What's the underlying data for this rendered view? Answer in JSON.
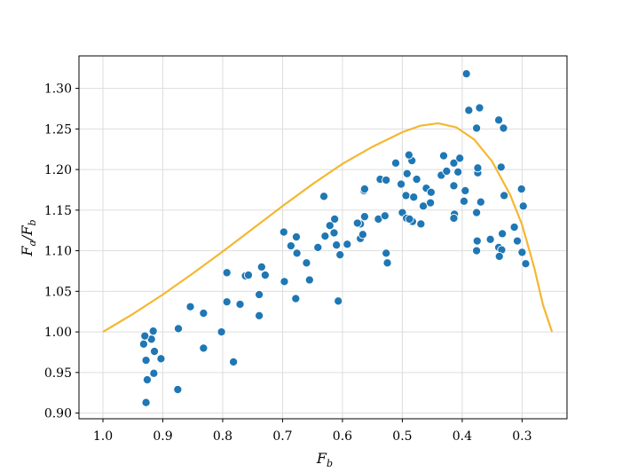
{
  "chart_data": {
    "type": "scatter",
    "title": "",
    "xlabel": "F_b",
    "ylabel": "F_a/F_b",
    "x_inverted": true,
    "xlim": [
      1.04,
      0.225
    ],
    "ylim": [
      0.893,
      1.34
    ],
    "grid": true,
    "x_ticks": [
      1.0,
      0.9,
      0.8,
      0.7,
      0.6,
      0.5,
      0.4,
      0.3
    ],
    "x_tick_labels": [
      "1.0",
      "0.9",
      "0.8",
      "0.7",
      "0.6",
      "0.5",
      "0.4",
      "0.3"
    ],
    "y_ticks": [
      0.9,
      0.95,
      1.0,
      1.05,
      1.1,
      1.15,
      1.2,
      1.25,
      1.3
    ],
    "y_tick_labels": [
      "0.90",
      "0.95",
      "1.00",
      "1.05",
      "1.10",
      "1.15",
      "1.20",
      "1.25",
      "1.30"
    ],
    "colors": {
      "points": "#1f77b4",
      "curve": "#f5b731",
      "grid": "#dddddd"
    },
    "series": [
      {
        "type": "scatter",
        "points": [
          [
            0.928,
            0.913
          ],
          [
            0.926,
            0.941
          ],
          [
            0.915,
            0.949
          ],
          [
            0.875,
            0.929
          ],
          [
            0.782,
            0.963
          ],
          [
            0.928,
            0.965
          ],
          [
            0.903,
            0.967
          ],
          [
            0.914,
            0.976
          ],
          [
            0.832,
            0.98
          ],
          [
            0.932,
            0.985
          ],
          [
            0.919,
            0.991
          ],
          [
            0.93,
            0.995
          ],
          [
            0.916,
            1.001
          ],
          [
            0.802,
            1.0
          ],
          [
            0.874,
            1.004
          ],
          [
            0.832,
            1.023
          ],
          [
            0.854,
            1.031
          ],
          [
            0.771,
            1.034
          ],
          [
            0.739,
            1.02
          ],
          [
            0.793,
            1.037
          ],
          [
            0.607,
            1.038
          ],
          [
            0.678,
            1.041
          ],
          [
            0.739,
            1.046
          ],
          [
            0.793,
            1.073
          ],
          [
            0.762,
            1.069
          ],
          [
            0.757,
            1.07
          ],
          [
            0.729,
            1.07
          ],
          [
            0.735,
            1.08
          ],
          [
            0.697,
            1.062
          ],
          [
            0.655,
            1.064
          ],
          [
            0.66,
            1.085
          ],
          [
            0.604,
            1.095
          ],
          [
            0.676,
            1.097
          ],
          [
            0.686,
            1.106
          ],
          [
            0.641,
            1.104
          ],
          [
            0.61,
            1.107
          ],
          [
            0.592,
            1.108
          ],
          [
            0.527,
            1.097
          ],
          [
            0.525,
            1.085
          ],
          [
            0.677,
            1.117
          ],
          [
            0.698,
            1.123
          ],
          [
            0.614,
            1.122
          ],
          [
            0.629,
            1.118
          ],
          [
            0.57,
            1.115
          ],
          [
            0.566,
            1.12
          ],
          [
            0.57,
            1.133
          ],
          [
            0.575,
            1.134
          ],
          [
            0.613,
            1.139
          ],
          [
            0.621,
            1.131
          ],
          [
            0.563,
            1.142
          ],
          [
            0.54,
            1.139
          ],
          [
            0.529,
            1.143
          ],
          [
            0.5,
            1.147
          ],
          [
            0.493,
            1.14
          ],
          [
            0.483,
            1.136
          ],
          [
            0.469,
            1.133
          ],
          [
            0.488,
            1.139
          ],
          [
            0.631,
            1.167
          ],
          [
            0.564,
            1.174
          ],
          [
            0.563,
            1.176
          ],
          [
            0.537,
            1.188
          ],
          [
            0.527,
            1.187
          ],
          [
            0.511,
            1.208
          ],
          [
            0.502,
            1.182
          ],
          [
            0.494,
            1.168
          ],
          [
            0.481,
            1.166
          ],
          [
            0.476,
            1.188
          ],
          [
            0.492,
            1.195
          ],
          [
            0.484,
            1.211
          ],
          [
            0.489,
            1.218
          ],
          [
            0.465,
            1.155
          ],
          [
            0.46,
            1.177
          ],
          [
            0.452,
            1.172
          ],
          [
            0.453,
            1.159
          ],
          [
            0.435,
            1.193
          ],
          [
            0.431,
            1.217
          ],
          [
            0.426,
            1.198
          ],
          [
            0.414,
            1.18
          ],
          [
            0.414,
            1.208
          ],
          [
            0.407,
            1.197
          ],
          [
            0.404,
            1.214
          ],
          [
            0.413,
            1.145
          ],
          [
            0.414,
            1.14
          ],
          [
            0.395,
            1.174
          ],
          [
            0.397,
            1.161
          ],
          [
            0.374,
            1.196
          ],
          [
            0.374,
            1.202
          ],
          [
            0.376,
            1.251
          ],
          [
            0.393,
            1.318
          ],
          [
            0.389,
            1.273
          ],
          [
            0.371,
            1.276
          ],
          [
            0.339,
            1.261
          ],
          [
            0.331,
            1.251
          ],
          [
            0.335,
            1.203
          ],
          [
            0.33,
            1.168
          ],
          [
            0.301,
            1.176
          ],
          [
            0.298,
            1.155
          ],
          [
            0.376,
            1.147
          ],
          [
            0.369,
            1.16
          ],
          [
            0.375,
            1.112
          ],
          [
            0.376,
            1.1
          ],
          [
            0.353,
            1.114
          ],
          [
            0.339,
            1.104
          ],
          [
            0.333,
            1.121
          ],
          [
            0.334,
            1.101
          ],
          [
            0.338,
            1.093
          ],
          [
            0.313,
            1.129
          ],
          [
            0.308,
            1.112
          ],
          [
            0.3,
            1.098
          ],
          [
            0.294,
            1.084
          ]
        ]
      },
      {
        "type": "line",
        "points": [
          [
            1.0,
            1.0
          ],
          [
            0.95,
            1.022
          ],
          [
            0.9,
            1.046
          ],
          [
            0.85,
            1.072
          ],
          [
            0.8,
            1.099
          ],
          [
            0.75,
            1.127
          ],
          [
            0.7,
            1.155
          ],
          [
            0.65,
            1.182
          ],
          [
            0.6,
            1.207
          ],
          [
            0.55,
            1.228
          ],
          [
            0.5,
            1.246
          ],
          [
            0.47,
            1.254
          ],
          [
            0.44,
            1.257
          ],
          [
            0.41,
            1.252
          ],
          [
            0.38,
            1.237
          ],
          [
            0.35,
            1.21
          ],
          [
            0.32,
            1.169
          ],
          [
            0.3,
            1.132
          ],
          [
            0.28,
            1.08
          ],
          [
            0.265,
            1.033
          ],
          [
            0.25,
            1.0
          ]
        ]
      }
    ]
  }
}
